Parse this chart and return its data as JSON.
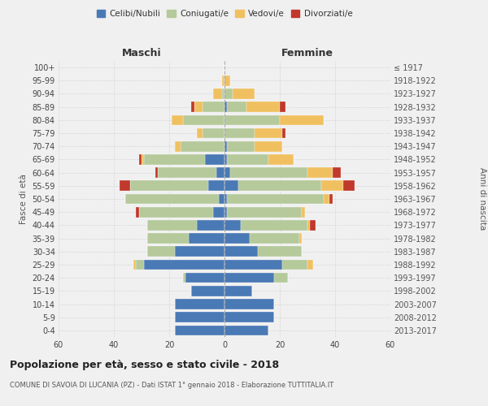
{
  "age_groups": [
    "0-4",
    "5-9",
    "10-14",
    "15-19",
    "20-24",
    "25-29",
    "30-34",
    "35-39",
    "40-44",
    "45-49",
    "50-54",
    "55-59",
    "60-64",
    "65-69",
    "70-74",
    "75-79",
    "80-84",
    "85-89",
    "90-94",
    "95-99",
    "100+"
  ],
  "birth_years": [
    "2013-2017",
    "2008-2012",
    "2003-2007",
    "1998-2002",
    "1993-1997",
    "1988-1992",
    "1983-1987",
    "1978-1982",
    "1973-1977",
    "1968-1972",
    "1963-1967",
    "1958-1962",
    "1953-1957",
    "1948-1952",
    "1943-1947",
    "1938-1942",
    "1933-1937",
    "1928-1932",
    "1923-1927",
    "1918-1922",
    "≤ 1917"
  ],
  "colors": {
    "celibi": "#4a7ab5",
    "coniugati": "#b5c99a",
    "vedovi": "#f0c060",
    "divorziati": "#c0392b"
  },
  "maschi": {
    "celibi": [
      18,
      18,
      18,
      12,
      14,
      29,
      18,
      13,
      10,
      4,
      2,
      6,
      3,
      7,
      0,
      0,
      0,
      0,
      0,
      0,
      0
    ],
    "coniugati": [
      0,
      0,
      0,
      0,
      1,
      3,
      10,
      15,
      18,
      27,
      34,
      28,
      21,
      22,
      16,
      8,
      15,
      8,
      1,
      0,
      0
    ],
    "vedovi": [
      0,
      0,
      0,
      0,
      0,
      1,
      0,
      0,
      0,
      0,
      0,
      0,
      0,
      1,
      2,
      2,
      4,
      3,
      3,
      1,
      0
    ],
    "divorziati": [
      0,
      0,
      0,
      0,
      0,
      0,
      0,
      0,
      0,
      1,
      0,
      4,
      1,
      1,
      0,
      0,
      0,
      1,
      0,
      0,
      0
    ]
  },
  "femmine": {
    "celibi": [
      16,
      18,
      18,
      10,
      18,
      21,
      12,
      9,
      6,
      1,
      1,
      5,
      2,
      1,
      1,
      0,
      0,
      1,
      0,
      0,
      0
    ],
    "coniugati": [
      0,
      0,
      0,
      0,
      5,
      9,
      16,
      18,
      24,
      27,
      35,
      30,
      28,
      15,
      10,
      11,
      20,
      7,
      3,
      0,
      0
    ],
    "vedovi": [
      0,
      0,
      0,
      0,
      0,
      2,
      0,
      1,
      1,
      1,
      2,
      8,
      9,
      9,
      10,
      10,
      16,
      12,
      8,
      2,
      0
    ],
    "divorziati": [
      0,
      0,
      0,
      0,
      0,
      0,
      0,
      0,
      2,
      0,
      1,
      4,
      3,
      0,
      0,
      1,
      0,
      2,
      0,
      0,
      0
    ]
  },
  "title": "Popolazione per età, sesso e stato civile - 2018",
  "subtitle": "COMUNE DI SAVOIA DI LUCANIA (PZ) - Dati ISTAT 1° gennaio 2018 - Elaborazione TUTTITALIA.IT",
  "xlabel_left": "Maschi",
  "xlabel_right": "Femmine",
  "ylabel_left": "Fasce di età",
  "ylabel_right": "Anni di nascita",
  "xlim": 60,
  "legend_labels": [
    "Celibi/Nubili",
    "Coniugati/e",
    "Vedovi/e",
    "Divorziati/e"
  ],
  "background_color": "#f0f0f0",
  "plot_bg": "#f0f0f0",
  "grid_color": "#cccccc"
}
